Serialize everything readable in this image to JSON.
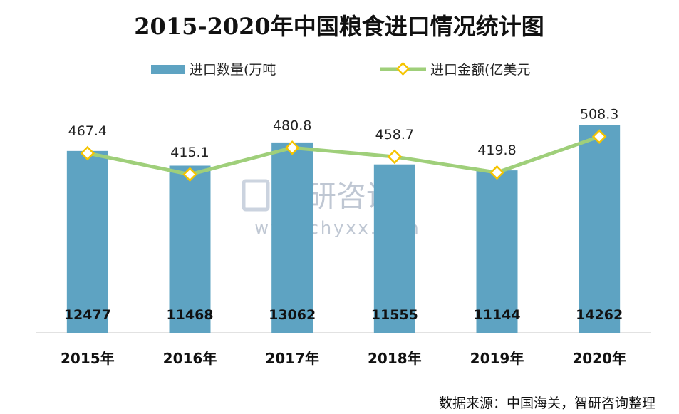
{
  "chart_data": {
    "type": "bar",
    "title": "2015-2020年中国粮食进口情况统计图",
    "categories": [
      "2015年",
      "2016年",
      "2017年",
      "2018年",
      "2019年",
      "2020年"
    ],
    "series": [
      {
        "name": "进口数量(万吨",
        "type": "bar",
        "values": [
          12477,
          11468,
          13062,
          11555,
          11144,
          14262
        ]
      },
      {
        "name": "进口金额(亿美元",
        "type": "line",
        "values": [
          467.4,
          415.1,
          480.8,
          458.7,
          419.8,
          508.3
        ]
      }
    ],
    "legend_position": "top",
    "grid": false,
    "colors": {
      "bar": "#5ea3c2",
      "line": "#9fcf7a",
      "marker_stroke": "#f5c400",
      "marker_fill": "#ffffff"
    }
  },
  "watermark": {
    "brand": "智研咨询",
    "url": "www.chyxx.com"
  },
  "source": "数据来源：中国海关，智研咨询整理"
}
